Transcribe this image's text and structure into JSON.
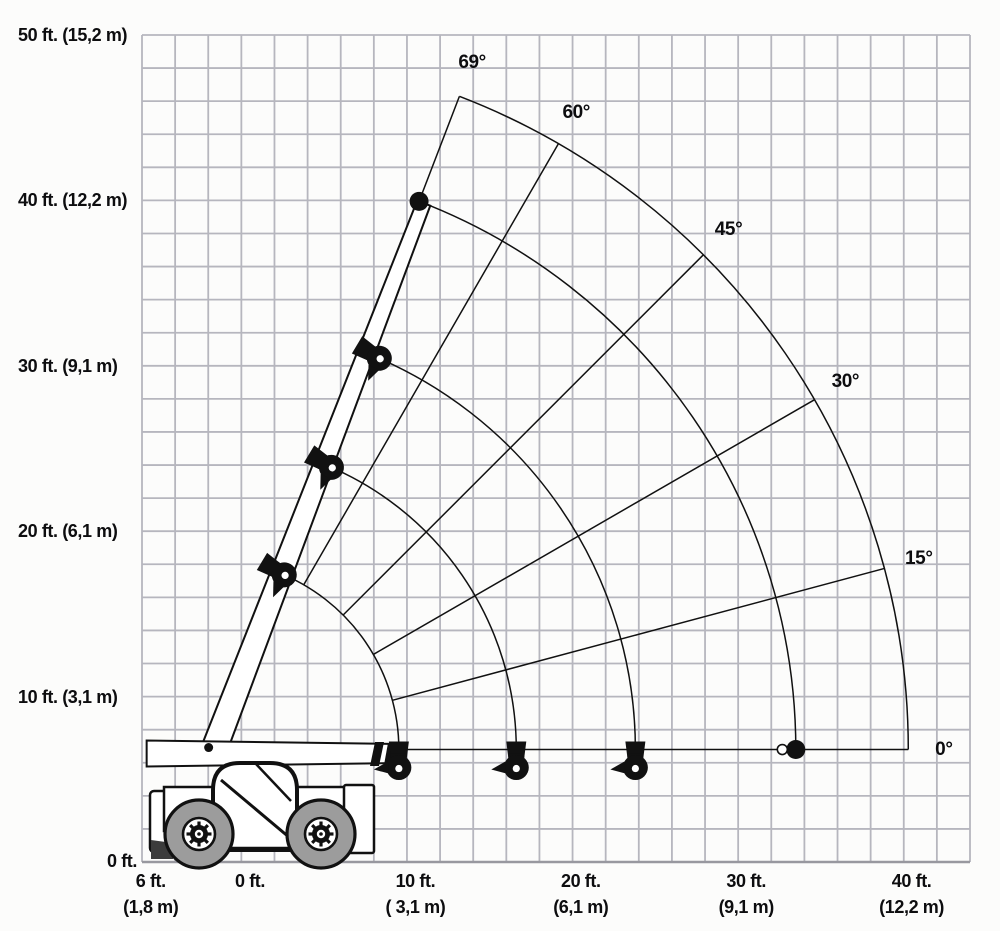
{
  "meta": {
    "background": "#fcfcfb",
    "ink": "#111111",
    "grid_color": "#b6b6be",
    "ground_color": "#98989f",
    "tire_gray": "#9c9c9c",
    "text_color": "#0d0d0f"
  },
  "chart_data": {
    "type": "polar-reach-diagram",
    "description_units": [
      "ft.",
      "m"
    ],
    "grid": {
      "on": true,
      "cell_ft": 2
    },
    "x_axis": {
      "ticks": [
        {
          "ft": -6,
          "label_lines": [
            "6 ft.",
            "(1,8 m)"
          ]
        },
        {
          "ft": 0,
          "label_lines": [
            "0 ft."
          ]
        },
        {
          "ft": 10,
          "label_lines": [
            "10 ft.",
            "( 3,1 m)"
          ]
        },
        {
          "ft": 20,
          "label_lines": [
            "20 ft.",
            "(6,1 m)"
          ]
        },
        {
          "ft": 30,
          "label_lines": [
            "30 ft.",
            "(9,1 m)"
          ]
        },
        {
          "ft": 40,
          "label_lines": [
            "40 ft.",
            "(12,2 m)"
          ]
        }
      ]
    },
    "y_axis": {
      "ticks": [
        {
          "ft": 50,
          "label": "50 ft. (15,2 m)"
        },
        {
          "ft": 40,
          "label": "40 ft. (12,2 m)"
        },
        {
          "ft": 30,
          "label": "30 ft. (9,1 m)"
        },
        {
          "ft": 20,
          "label": "20 ft. (6,1 m)"
        },
        {
          "ft": 10,
          "label": "10 ft. (3,1 m)"
        },
        {
          "ft": 0,
          "label": "0 ft."
        }
      ]
    },
    "boom_pivot_ft": {
      "x": -2.5,
      "y": 6.8
    },
    "boom_angles_deg": [
      69,
      60,
      45,
      30,
      15,
      0
    ],
    "angle_labels": [
      {
        "deg": 69,
        "text": "69°"
      },
      {
        "deg": 60,
        "text": "60°"
      },
      {
        "deg": 45,
        "text": "45°"
      },
      {
        "deg": 30,
        "text": "30°"
      },
      {
        "deg": 15,
        "text": "15°"
      },
      {
        "deg": 0,
        "text": "0°"
      }
    ],
    "extension_arcs_ft": [
      11.5,
      18.6,
      25.8,
      35.5,
      42.3
    ],
    "max_reach_ft": 42.3,
    "radial_span_ft": {
      "from": 11.5,
      "to": 42.3
    },
    "booms_drawn": [
      {
        "angle_deg": 69,
        "tip_radius_ft": 35.5
      },
      {
        "angle_deg": 0,
        "tip_radius_ft": 11.5
      }
    ],
    "markers": [
      {
        "angle_deg": 69,
        "radius_ft": 11.5,
        "type": "fork",
        "draw_angle_deg": 66.3
      },
      {
        "angle_deg": 69,
        "radius_ft": 18.6,
        "type": "fork",
        "draw_angle_deg": 66.3
      },
      {
        "angle_deg": 69,
        "radius_ft": 25.8,
        "type": "fork",
        "draw_angle_deg": 66.3
      },
      {
        "angle_deg": 69,
        "radius_ft": 35.5,
        "type": "dot",
        "draw_angle_deg": 69
      },
      {
        "angle_deg": 0,
        "radius_ft": 11.5,
        "type": "fork",
        "draw_angle_deg": 0
      },
      {
        "angle_deg": 0,
        "radius_ft": 18.6,
        "type": "fork",
        "draw_angle_deg": 0
      },
      {
        "angle_deg": 0,
        "radius_ft": 25.8,
        "type": "fork",
        "draw_angle_deg": 0
      },
      {
        "angle_deg": 0,
        "radius_ft": 35.5,
        "type": "dot",
        "draw_angle_deg": 0
      }
    ]
  }
}
